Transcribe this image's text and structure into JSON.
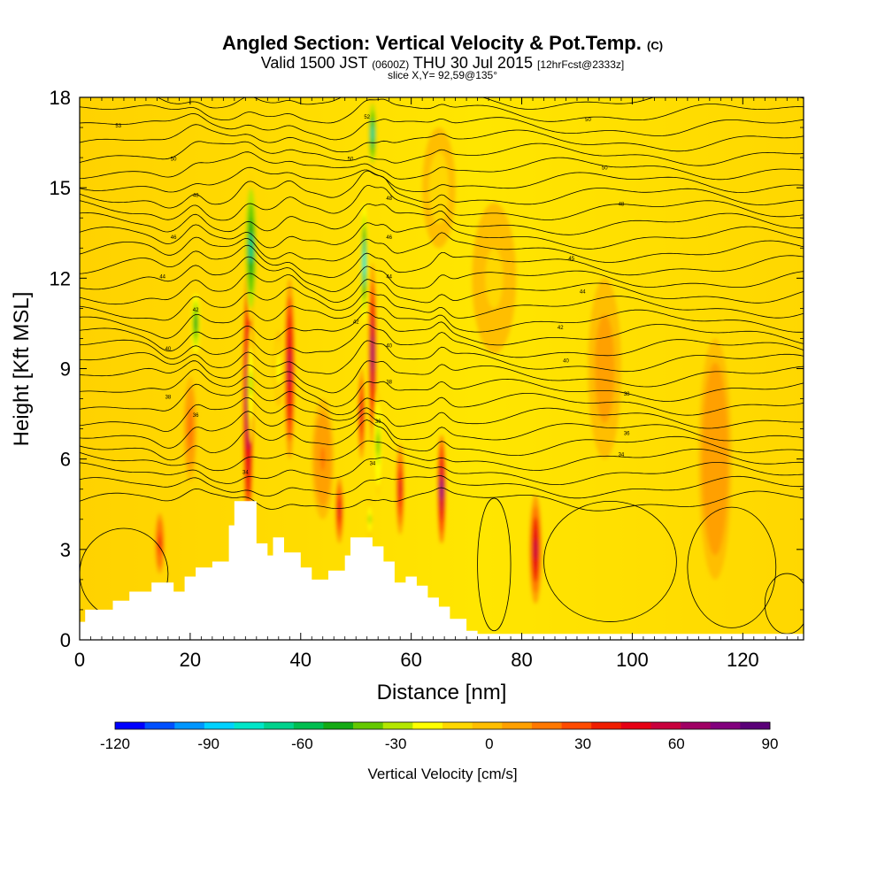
{
  "title": {
    "main": "Angled Section: Vertical Velocity & Pot.Temp.",
    "mark": "(C)"
  },
  "subtitle": {
    "prefix": "Valid 1500 JST",
    "utc": "(0600Z)",
    "date": "THU 30 Jul 2015",
    "fcst": "[12hrFcst@2333z]"
  },
  "slice_label": "slice X,Y= 92,59@135°",
  "chart_data": {
    "type": "heatmap",
    "xlabel": "Distance [nm]",
    "ylabel": "Height [Kft MSL]",
    "xlim": [
      0,
      131
    ],
    "ylim": [
      0,
      18
    ],
    "x_ticks": [
      0,
      20,
      40,
      60,
      80,
      100,
      120
    ],
    "y_ticks": [
      0,
      3,
      6,
      9,
      12,
      15,
      18
    ],
    "colorbar": {
      "label": "Vertical Velocity [cm/s]",
      "ticks": [
        -120,
        -90,
        -60,
        -30,
        0,
        30,
        60,
        90
      ],
      "range": [
        -120,
        90
      ],
      "colors": [
        "#0000ff",
        "#0050ff",
        "#0096ff",
        "#00d2ff",
        "#00e6c8",
        "#00d28c",
        "#00be50",
        "#14aa14",
        "#64c800",
        "#b4e600",
        "#ffff00",
        "#ffd700",
        "#ffbe00",
        "#ffa000",
        "#ff7800",
        "#ff4b00",
        "#f01e00",
        "#e60014",
        "#c8003c",
        "#a00064",
        "#82007d",
        "#5a0078"
      ]
    },
    "terrain": [
      [
        0,
        0.6
      ],
      [
        1,
        1.0
      ],
      [
        6,
        1.3
      ],
      [
        9,
        1.6
      ],
      [
        13,
        1.9
      ],
      [
        17,
        1.6
      ],
      [
        19,
        2.1
      ],
      [
        21,
        2.4
      ],
      [
        24,
        2.6
      ],
      [
        27,
        3.8
      ],
      [
        28,
        4.6
      ],
      [
        31,
        4.6
      ],
      [
        32,
        3.2
      ],
      [
        34,
        2.8
      ],
      [
        35,
        3.4
      ],
      [
        37,
        2.9
      ],
      [
        40,
        2.4
      ],
      [
        42,
        2.0
      ],
      [
        45,
        2.3
      ],
      [
        48,
        2.8
      ],
      [
        49,
        3.4
      ],
      [
        53,
        3.1
      ],
      [
        55,
        2.6
      ],
      [
        57,
        1.9
      ],
      [
        59,
        2.1
      ],
      [
        61,
        1.8
      ],
      [
        63,
        1.4
      ],
      [
        65,
        1.1
      ],
      [
        67,
        0.7
      ],
      [
        70,
        0.3
      ],
      [
        72,
        0.2
      ],
      [
        131,
        0.2
      ]
    ],
    "updrafts": [
      {
        "x": 30.5,
        "y": 8.0,
        "w": 0.9,
        "h": 8.5,
        "peak": 85
      },
      {
        "x": 38.0,
        "y": 9.0,
        "w": 0.9,
        "h": 6.0,
        "peak": 60
      },
      {
        "x": 53.0,
        "y": 9.5,
        "w": 0.7,
        "h": 6.0,
        "peak": 65
      },
      {
        "x": 51.0,
        "y": 7.5,
        "w": 0.6,
        "h": 3.0,
        "peak": 45
      },
      {
        "x": 65.5,
        "y": 5.0,
        "w": 0.7,
        "h": 3.6,
        "peak": 75
      },
      {
        "x": 58.0,
        "y": 5.0,
        "w": 0.7,
        "h": 3.0,
        "peak": 45
      },
      {
        "x": 47.0,
        "y": 4.3,
        "w": 0.7,
        "h": 2.2,
        "peak": 50
      },
      {
        "x": 82.5,
        "y": 3.0,
        "w": 1.1,
        "h": 3.6,
        "peak": 55
      },
      {
        "x": 14.5,
        "y": 3.2,
        "w": 0.8,
        "h": 2.0,
        "peak": 35
      },
      {
        "x": 20.0,
        "y": 7.0,
        "w": 1.2,
        "h": 3.5,
        "peak": 20
      },
      {
        "x": 44.0,
        "y": 6.0,
        "w": 2.0,
        "h": 4.0,
        "peak": 15
      },
      {
        "x": 95.0,
        "y": 9.0,
        "w": 3.0,
        "h": 6.0,
        "peak": 10
      },
      {
        "x": 115.0,
        "y": 6.0,
        "w": 3.0,
        "h": 8.0,
        "peak": 12
      }
    ],
    "downdrafts": [
      {
        "x": 31.0,
        "y": 13.0,
        "w": 1.2,
        "h": 5.0,
        "peak": -65
      },
      {
        "x": 31.0,
        "y": 8.5,
        "w": 0.8,
        "h": 4.0,
        "peak": -30
      },
      {
        "x": 51.5,
        "y": 12.5,
        "w": 0.6,
        "h": 4.0,
        "peak": -80
      },
      {
        "x": 53.0,
        "y": 16.8,
        "w": 0.8,
        "h": 2.5,
        "peak": -70
      },
      {
        "x": 54.0,
        "y": 6.5,
        "w": 0.8,
        "h": 3.5,
        "peak": -40
      },
      {
        "x": 21.0,
        "y": 10.5,
        "w": 1.0,
        "h": 2.5,
        "peak": -50
      },
      {
        "x": 52.5,
        "y": 4.0,
        "w": 0.6,
        "h": 1.5,
        "peak": -30
      },
      {
        "x": 36.0,
        "y": 9.0,
        "w": 0.8,
        "h": 2.5,
        "peak": -20
      },
      {
        "x": 65.0,
        "y": 15.0,
        "w": 3.0,
        "h": 4.0,
        "peak": -10
      },
      {
        "x": 75.0,
        "y": 12.0,
        "w": 4.0,
        "h": 5.0,
        "peak": -8
      }
    ],
    "contour_labels": [
      {
        "x": 7,
        "y": 17.0,
        "text": "53"
      },
      {
        "x": 52,
        "y": 17.3,
        "text": "52"
      },
      {
        "x": 92,
        "y": 17.2,
        "text": "50"
      },
      {
        "x": 17,
        "y": 15.9,
        "text": "50"
      },
      {
        "x": 49,
        "y": 15.9,
        "text": "50"
      },
      {
        "x": 95,
        "y": 15.6,
        "text": "50"
      },
      {
        "x": 21,
        "y": 14.7,
        "text": "48"
      },
      {
        "x": 56,
        "y": 14.6,
        "text": "48"
      },
      {
        "x": 98,
        "y": 14.4,
        "text": "48"
      },
      {
        "x": 17,
        "y": 13.3,
        "text": "46"
      },
      {
        "x": 56,
        "y": 13.3,
        "text": "46"
      },
      {
        "x": 89,
        "y": 12.6,
        "text": "45"
      },
      {
        "x": 15,
        "y": 12.0,
        "text": "44"
      },
      {
        "x": 56,
        "y": 12.0,
        "text": "44"
      },
      {
        "x": 91,
        "y": 11.5,
        "text": "44"
      },
      {
        "x": 21,
        "y": 10.9,
        "text": "42"
      },
      {
        "x": 50,
        "y": 10.5,
        "text": "42"
      },
      {
        "x": 87,
        "y": 10.3,
        "text": "42"
      },
      {
        "x": 16,
        "y": 9.6,
        "text": "40"
      },
      {
        "x": 56,
        "y": 9.7,
        "text": "40"
      },
      {
        "x": 88,
        "y": 9.2,
        "text": "40"
      },
      {
        "x": 16,
        "y": 8.0,
        "text": "38"
      },
      {
        "x": 56,
        "y": 8.5,
        "text": "38"
      },
      {
        "x": 99,
        "y": 8.1,
        "text": "38"
      },
      {
        "x": 21,
        "y": 7.4,
        "text": "36"
      },
      {
        "x": 54,
        "y": 7.2,
        "text": "36"
      },
      {
        "x": 99,
        "y": 6.8,
        "text": "36"
      },
      {
        "x": 30,
        "y": 5.5,
        "text": "34"
      },
      {
        "x": 53,
        "y": 5.8,
        "text": "34"
      },
      {
        "x": 98,
        "y": 6.1,
        "text": "34"
      }
    ]
  }
}
